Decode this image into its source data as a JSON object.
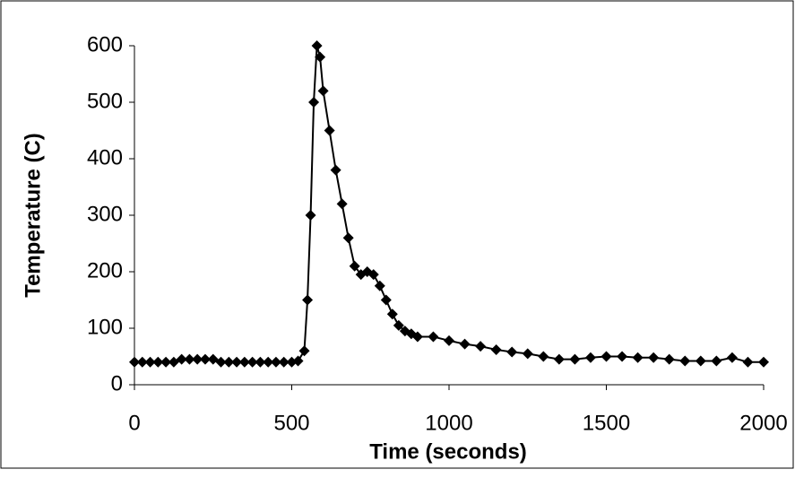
{
  "chart_data": {
    "type": "line",
    "x_label": "Time (seconds)",
    "y_label": "Temperature (C)",
    "x": [
      0,
      25,
      50,
      75,
      100,
      125,
      150,
      175,
      200,
      225,
      250,
      275,
      300,
      325,
      350,
      375,
      400,
      425,
      450,
      475,
      500,
      520,
      540,
      550,
      560,
      570,
      580,
      590,
      600,
      620,
      640,
      660,
      680,
      700,
      720,
      740,
      760,
      780,
      800,
      820,
      840,
      860,
      880,
      900,
      950,
      1000,
      1050,
      1100,
      1150,
      1200,
      1250,
      1300,
      1350,
      1400,
      1450,
      1500,
      1550,
      1600,
      1650,
      1700,
      1750,
      1800,
      1850,
      1900,
      1950,
      2000
    ],
    "series": [
      {
        "color": "#000000",
        "values": [
          40,
          40,
          40,
          40,
          40,
          40,
          45,
          45,
          45,
          45,
          45,
          40,
          40,
          40,
          40,
          40,
          40,
          40,
          40,
          40,
          40,
          42,
          60,
          150,
          300,
          500,
          600,
          580,
          520,
          450,
          380,
          320,
          260,
          210,
          195,
          200,
          195,
          175,
          150,
          125,
          105,
          95,
          90,
          85,
          85,
          78,
          72,
          68,
          62,
          58,
          55,
          50,
          45,
          45,
          48,
          50,
          50,
          48,
          48,
          45,
          42,
          42,
          42,
          48,
          40,
          40
        ]
      }
    ],
    "xlim": [
      0,
      2000
    ],
    "xticks": [
      0,
      500,
      1000,
      1500,
      2000
    ],
    "ylim": [
      0,
      600
    ],
    "yticks": [
      0,
      100,
      200,
      300,
      400,
      500,
      600
    ]
  }
}
